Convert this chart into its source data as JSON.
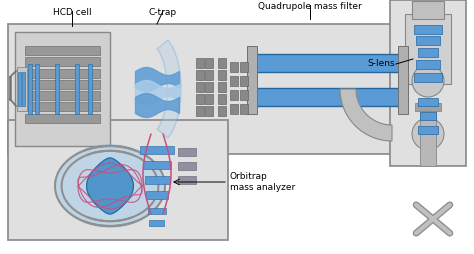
{
  "blue_light": "#5b9bd5",
  "blue_dark": "#2367a0",
  "blue_pale": "#aacce8",
  "blue_mid": "#4490c8",
  "gray_box": "#d4d4d4",
  "gray_dark": "#707070",
  "gray_mid": "#909090",
  "gray_light": "#bbbbbb",
  "gray_stroke": "#888888",
  "pink": "#c85080",
  "white": "#ffffff",
  "hcd_label": "HCD cell",
  "ctrap_label": "C-trap",
  "quad_label": "Quadrupole mass filter",
  "slens_label": "S-lens",
  "orbitrap_label": "Orbitrap\nmass analyzer",
  "label_fs": 6.5
}
